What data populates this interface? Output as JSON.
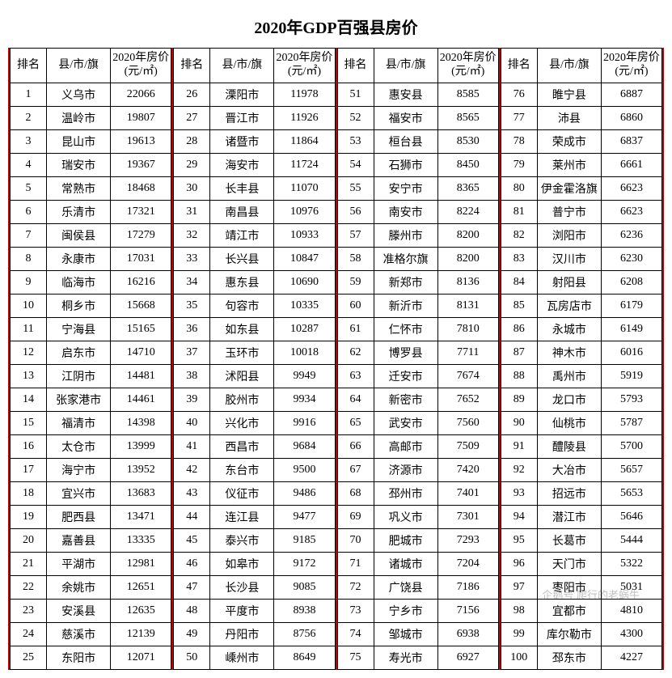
{
  "title": "2020年GDP百强县房价",
  "headers": {
    "rank": "排名",
    "name": "县/市/旗",
    "price": "2020年房价\n(元/㎡)"
  },
  "watermark": "企鹅号 爬行的老蜗牛",
  "rows": [
    {
      "r": 1,
      "n": "义乌市",
      "p": 22066
    },
    {
      "r": 2,
      "n": "温岭市",
      "p": 19807
    },
    {
      "r": 3,
      "n": "昆山市",
      "p": 19613
    },
    {
      "r": 4,
      "n": "瑞安市",
      "p": 19367
    },
    {
      "r": 5,
      "n": "常熟市",
      "p": 18468
    },
    {
      "r": 6,
      "n": "乐清市",
      "p": 17321
    },
    {
      "r": 7,
      "n": "闽侯县",
      "p": 17279
    },
    {
      "r": 8,
      "n": "永康市",
      "p": 17031
    },
    {
      "r": 9,
      "n": "临海市",
      "p": 16216
    },
    {
      "r": 10,
      "n": "桐乡市",
      "p": 15668
    },
    {
      "r": 11,
      "n": "宁海县",
      "p": 15165
    },
    {
      "r": 12,
      "n": "启东市",
      "p": 14710
    },
    {
      "r": 13,
      "n": "江阴市",
      "p": 14481
    },
    {
      "r": 14,
      "n": "张家港市",
      "p": 14461
    },
    {
      "r": 15,
      "n": "福清市",
      "p": 14398
    },
    {
      "r": 16,
      "n": "太仓市",
      "p": 13999
    },
    {
      "r": 17,
      "n": "海宁市",
      "p": 13952
    },
    {
      "r": 18,
      "n": "宜兴市",
      "p": 13683
    },
    {
      "r": 19,
      "n": "肥西县",
      "p": 13471
    },
    {
      "r": 20,
      "n": "嘉善县",
      "p": 13335
    },
    {
      "r": 21,
      "n": "平湖市",
      "p": 12981
    },
    {
      "r": 22,
      "n": "余姚市",
      "p": 12651
    },
    {
      "r": 23,
      "n": "安溪县",
      "p": 12635
    },
    {
      "r": 24,
      "n": "慈溪市",
      "p": 12139
    },
    {
      "r": 25,
      "n": "东阳市",
      "p": 12071
    },
    {
      "r": 26,
      "n": "溧阳市",
      "p": 11978
    },
    {
      "r": 27,
      "n": "晋江市",
      "p": 11926
    },
    {
      "r": 28,
      "n": "诸暨市",
      "p": 11864
    },
    {
      "r": 29,
      "n": "海安市",
      "p": 11724
    },
    {
      "r": 30,
      "n": "长丰县",
      "p": 11070
    },
    {
      "r": 31,
      "n": "南昌县",
      "p": 10976
    },
    {
      "r": 32,
      "n": "靖江市",
      "p": 10933
    },
    {
      "r": 33,
      "n": "长兴县",
      "p": 10847
    },
    {
      "r": 34,
      "n": "惠东县",
      "p": 10690
    },
    {
      "r": 35,
      "n": "句容市",
      "p": 10335
    },
    {
      "r": 36,
      "n": "如东县",
      "p": 10287
    },
    {
      "r": 37,
      "n": "玉环市",
      "p": 10018
    },
    {
      "r": 38,
      "n": "沭阳县",
      "p": 9949
    },
    {
      "r": 39,
      "n": "胶州市",
      "p": 9934
    },
    {
      "r": 40,
      "n": "兴化市",
      "p": 9916
    },
    {
      "r": 41,
      "n": "西昌市",
      "p": 9684
    },
    {
      "r": 42,
      "n": "东台市",
      "p": 9500
    },
    {
      "r": 43,
      "n": "仪征市",
      "p": 9486
    },
    {
      "r": 44,
      "n": "连江县",
      "p": 9477
    },
    {
      "r": 45,
      "n": "泰兴市",
      "p": 9185
    },
    {
      "r": 46,
      "n": "如皋市",
      "p": 9172
    },
    {
      "r": 47,
      "n": "长沙县",
      "p": 9085
    },
    {
      "r": 48,
      "n": "平度市",
      "p": 8938
    },
    {
      "r": 49,
      "n": "丹阳市",
      "p": 8756
    },
    {
      "r": 50,
      "n": "嵊州市",
      "p": 8649
    },
    {
      "r": 51,
      "n": "惠安县",
      "p": 8585
    },
    {
      "r": 52,
      "n": "福安市",
      "p": 8565
    },
    {
      "r": 53,
      "n": "桓台县",
      "p": 8530
    },
    {
      "r": 54,
      "n": "石狮市",
      "p": 8450
    },
    {
      "r": 55,
      "n": "安宁市",
      "p": 8365
    },
    {
      "r": 56,
      "n": "南安市",
      "p": 8224
    },
    {
      "r": 57,
      "n": "滕州市",
      "p": 8200
    },
    {
      "r": 58,
      "n": "准格尔旗",
      "p": 8200
    },
    {
      "r": 59,
      "n": "新郑市",
      "p": 8136
    },
    {
      "r": 60,
      "n": "新沂市",
      "p": 8131
    },
    {
      "r": 61,
      "n": "仁怀市",
      "p": 7810
    },
    {
      "r": 62,
      "n": "博罗县",
      "p": 7711
    },
    {
      "r": 63,
      "n": "迁安市",
      "p": 7674
    },
    {
      "r": 64,
      "n": "新密市",
      "p": 7652
    },
    {
      "r": 65,
      "n": "武安市",
      "p": 7560
    },
    {
      "r": 66,
      "n": "高邮市",
      "p": 7509
    },
    {
      "r": 67,
      "n": "济源市",
      "p": 7420
    },
    {
      "r": 68,
      "n": "邳州市",
      "p": 7401
    },
    {
      "r": 69,
      "n": "巩义市",
      "p": 7301
    },
    {
      "r": 70,
      "n": "肥城市",
      "p": 7293
    },
    {
      "r": 71,
      "n": "诸城市",
      "p": 7204
    },
    {
      "r": 72,
      "n": "广饶县",
      "p": 7186
    },
    {
      "r": 73,
      "n": "宁乡市",
      "p": 7156
    },
    {
      "r": 74,
      "n": "邹城市",
      "p": 6938
    },
    {
      "r": 75,
      "n": "寿光市",
      "p": 6927
    },
    {
      "r": 76,
      "n": "睢宁县",
      "p": 6887
    },
    {
      "r": 77,
      "n": "沛县",
      "p": 6860
    },
    {
      "r": 78,
      "n": "荣成市",
      "p": 6837
    },
    {
      "r": 79,
      "n": "莱州市",
      "p": 6661
    },
    {
      "r": 80,
      "n": "伊金霍洛旗",
      "p": 6623
    },
    {
      "r": 81,
      "n": "普宁市",
      "p": 6623
    },
    {
      "r": 82,
      "n": "浏阳市",
      "p": 6236
    },
    {
      "r": 83,
      "n": "汉川市",
      "p": 6230
    },
    {
      "r": 84,
      "n": "射阳县",
      "p": 6208
    },
    {
      "r": 85,
      "n": "瓦房店市",
      "p": 6179
    },
    {
      "r": 86,
      "n": "永城市",
      "p": 6149
    },
    {
      "r": 87,
      "n": "神木市",
      "p": 6016
    },
    {
      "r": 88,
      "n": "禹州市",
      "p": 5919
    },
    {
      "r": 89,
      "n": "龙口市",
      "p": 5793
    },
    {
      "r": 90,
      "n": "仙桃市",
      "p": 5787
    },
    {
      "r": 91,
      "n": "醴陵县",
      "p": 5700
    },
    {
      "r": 92,
      "n": "大冶市",
      "p": 5657
    },
    {
      "r": 93,
      "n": "招远市",
      "p": 5653
    },
    {
      "r": 94,
      "n": "潜江市",
      "p": 5646
    },
    {
      "r": 95,
      "n": "长葛市",
      "p": 5444
    },
    {
      "r": 96,
      "n": "天门市",
      "p": 5322
    },
    {
      "r": 97,
      "n": "枣阳市",
      "p": 5031
    },
    {
      "r": 98,
      "n": "宜都市",
      "p": 4810
    },
    {
      "r": 99,
      "n": "库尔勒市",
      "p": 4300
    },
    {
      "r": 100,
      "n": "邳东市",
      "p": 4227
    }
  ]
}
